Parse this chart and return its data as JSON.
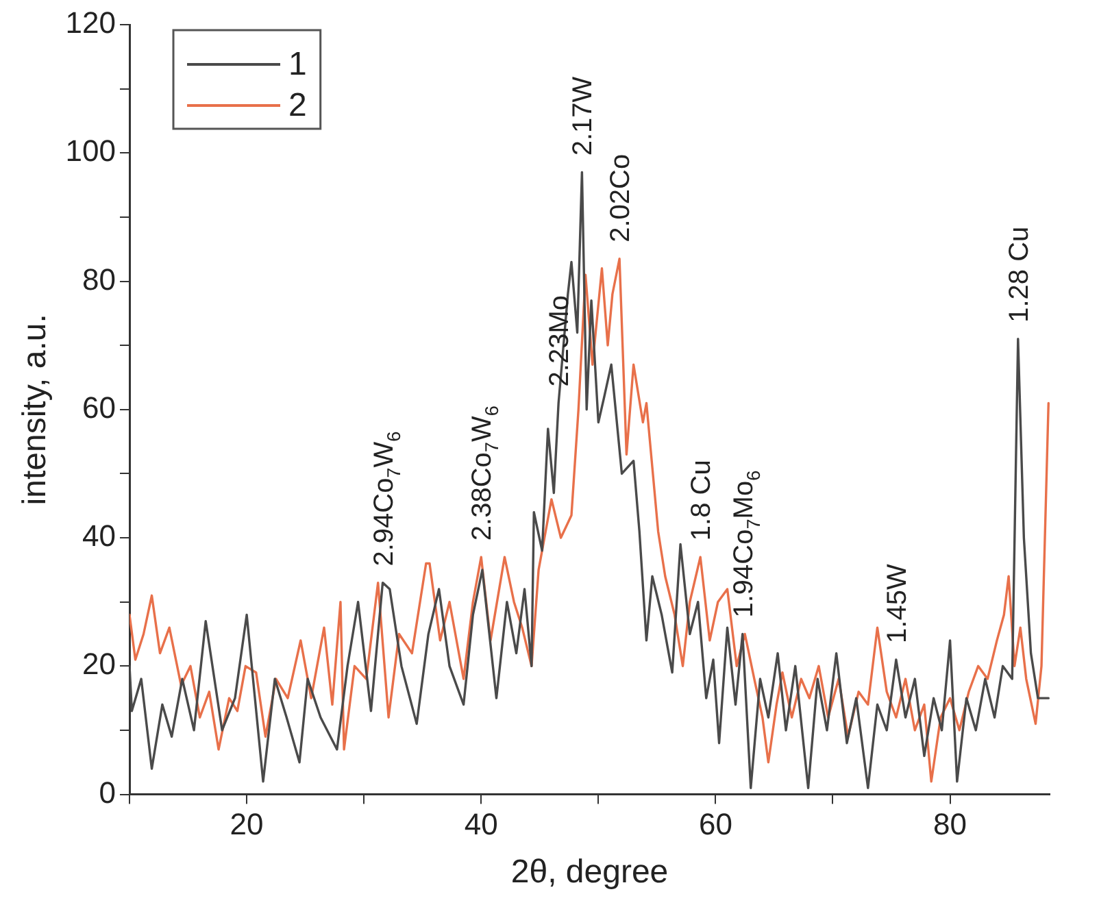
{
  "chart_data": {
    "type": "line",
    "xlabel": "2θ, degree",
    "ylabel": "intensity, a.u.",
    "xlim": [
      10,
      88.5
    ],
    "xticks": [
      {
        "value": 10,
        "label": null
      },
      20,
      {
        "value": 30,
        "label": null
      },
      40,
      {
        "value": 50,
        "label": null
      },
      60,
      {
        "value": 70,
        "label": null
      },
      80
    ],
    "ylim": [
      0,
      120
    ],
    "yticks": [
      0,
      {
        "value": 10,
        "label": null
      },
      20,
      {
        "value": 30,
        "label": null
      },
      40,
      {
        "value": 50,
        "label": null
      },
      60,
      {
        "value": 70,
        "label": null
      },
      80,
      {
        "value": 90,
        "label": null
      },
      100,
      {
        "value": 110,
        "label": null
      },
      120
    ],
    "grid": false,
    "legend": "top left",
    "marker": "none",
    "line_style": "solid",
    "series": [
      {
        "name": "1",
        "color": "#4a4a4a",
        "x": [
          10,
          10.2,
          11,
          11.9,
          12.8,
          13.6,
          14.5,
          15.5,
          16.5,
          17.9,
          19,
          20,
          21.4,
          22.4,
          23.4,
          24.5,
          25.2,
          26.3,
          27.7,
          28.6,
          29.5,
          30.6,
          31.6,
          32.2,
          33.2,
          34.5,
          35.5,
          36.4,
          37.3,
          38.5,
          39.3,
          40.1,
          41.3,
          42.2,
          43,
          43.7,
          44.3,
          44.5,
          45.2,
          45.7,
          46.2,
          46.6,
          47.4,
          47.7,
          48.2,
          48.6,
          49,
          49.4,
          50,
          50.5,
          51.1,
          52,
          53,
          53.5,
          54.1,
          54.6,
          55.4,
          56.3,
          57,
          57.8,
          58.5,
          59.2,
          59.8,
          60.3,
          61,
          61.7,
          62.3,
          63,
          63.8,
          64.5,
          65.3,
          66,
          66.8,
          67.9,
          68.7,
          69.5,
          70.3,
          71.2,
          72,
          73,
          73.8,
          74.6,
          75.4,
          76.2,
          77,
          77.8,
          78.6,
          79.3,
          80,
          80.6,
          81.4,
          82.2,
          83,
          83.8,
          84.5,
          85.3,
          85.8,
          86.3,
          86.9,
          87.5,
          88.4
        ],
        "values": [
          20,
          13,
          18,
          4,
          14,
          9,
          18,
          10,
          27,
          10,
          15,
          28,
          2,
          18,
          12,
          5,
          18,
          12,
          7,
          20,
          30,
          13,
          33,
          32,
          20,
          11,
          25,
          32,
          20,
          14,
          28,
          35,
          15,
          30,
          22,
          32,
          20,
          44,
          38,
          57,
          47,
          61,
          78,
          83,
          72,
          97,
          60,
          77,
          58,
          62,
          67,
          50,
          52,
          41,
          24,
          34,
          28,
          19,
          39,
          25,
          30,
          15,
          21,
          8,
          26,
          14,
          25,
          1,
          18,
          12,
          22,
          10,
          20,
          1,
          18,
          10,
          22,
          8,
          15,
          1,
          14,
          10,
          21,
          12,
          18,
          6,
          15,
          10,
          24,
          2,
          15,
          10,
          18,
          12,
          20,
          18,
          71,
          40,
          22,
          15,
          15
        ]
      },
      {
        "name": "2",
        "color": "#e8704a",
        "x": [
          10,
          10.5,
          11.2,
          11.9,
          12.6,
          13.4,
          14.4,
          15.2,
          16,
          16.8,
          17.6,
          18.5,
          19.2,
          19.9,
          20.8,
          21.6,
          22.5,
          23.5,
          24.6,
          25.5,
          26.6,
          27.3,
          28,
          28.3,
          29.2,
          30.2,
          31.2,
          32.1,
          33,
          34.1,
          35.3,
          35.6,
          36.5,
          37.3,
          38.5,
          39.3,
          40,
          40.8,
          42,
          42.8,
          43.5,
          44.3,
          44.9,
          46,
          46.8,
          47.7,
          48.3,
          48.9,
          49.5,
          50.3,
          50.8,
          51.2,
          51.8,
          52.4,
          53,
          53.8,
          54.1,
          55.1,
          55.7,
          56.5,
          57.2,
          57.8,
          58.7,
          59.5,
          60.2,
          61,
          61.8,
          62.5,
          63.3,
          64,
          64.5,
          65.2,
          65.7,
          66.5,
          67.3,
          68,
          68.8,
          69.6,
          70.5,
          71.3,
          72.2,
          73,
          73.8,
          74.6,
          75.4,
          76.2,
          77,
          77.8,
          78.4,
          79.2,
          80,
          80.8,
          81.6,
          82.4,
          83.2,
          84,
          84.6,
          85,
          85.5,
          86,
          86.5,
          87.3,
          87.8,
          88.4
        ],
        "values": [
          28,
          21,
          25,
          31,
          22,
          26,
          17,
          20,
          12,
          16,
          7,
          15,
          13,
          20,
          19,
          9,
          18,
          15,
          24,
          15,
          26,
          14,
          30,
          7,
          20,
          18,
          33,
          12,
          25,
          22,
          36,
          36,
          24,
          30,
          18,
          30,
          37,
          24,
          37,
          30,
          26,
          20,
          35,
          46,
          40,
          43.5,
          60,
          81,
          67,
          82,
          70,
          78,
          83.5,
          53,
          67,
          58,
          61,
          41,
          34,
          28,
          20,
          30,
          37,
          24,
          30,
          32,
          20,
          25,
          18,
          12,
          5,
          14,
          19,
          12,
          18,
          15,
          20,
          12,
          18,
          9,
          16,
          14,
          26,
          16,
          12,
          18,
          10,
          14,
          2,
          12,
          15,
          10,
          16,
          20,
          18,
          24,
          28,
          34,
          20,
          26,
          18,
          11,
          20,
          61
        ]
      }
    ],
    "annotations": [
      {
        "text": "2.94Co$_{7}$W$_{6}$",
        "x": 31.6,
        "y": 33
      },
      {
        "text": "2.38Co$_{7}$W$_{6}$",
        "x": 40,
        "y": 37
      },
      {
        "text": "2.23Mo",
        "x": 46.6,
        "y": 61
      },
      {
        "text": "2.17W",
        "x": 48.6,
        "y": 97
      },
      {
        "text": "2.02Co",
        "x": 51.8,
        "y": 83.5
      },
      {
        "text": "1.8 Cu",
        "x": 58.7,
        "y": 37
      },
      {
        "text": "1.94Co$_{7}$Mo$_{6}$",
        "x": 62.3,
        "y": 25
      },
      {
        "text": "1.45W",
        "x": 75.4,
        "y": 21
      },
      {
        "text": "1.28 Cu",
        "x": 85.8,
        "y": 71
      }
    ]
  }
}
